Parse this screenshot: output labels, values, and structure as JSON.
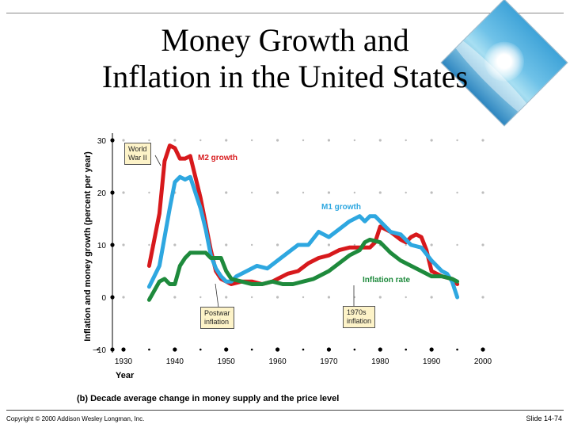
{
  "slide": {
    "title_line1": "Money Growth and",
    "title_line2": "Inflation in the United States",
    "copyright": "Copyright © 2000 Addison Wesley Longman, Inc.",
    "slide_number": "Slide 14-74",
    "caption": "(b) Decade average change in money supply and the price level"
  },
  "chart_data": {
    "type": "line",
    "ylabel": "Inflation and money growth (percent per year)",
    "xlabel": "Year",
    "xlim": [
      1926,
      2002
    ],
    "ylim": [
      -10,
      30
    ],
    "xticks": [
      1930,
      1940,
      1950,
      1960,
      1970,
      1980,
      1990,
      2000
    ],
    "yticks": [
      -10,
      0,
      10,
      20,
      30
    ],
    "grid": false,
    "series": [
      {
        "name": "M2 growth",
        "color": "#d7191c",
        "x": [
          1935,
          1937,
          1938,
          1939,
          1940,
          1941,
          1942,
          1943,
          1944,
          1945,
          1946,
          1947,
          1948,
          1949,
          1950,
          1951,
          1953,
          1955,
          1957,
          1959,
          1960,
          1962,
          1964,
          1966,
          1968,
          1970,
          1972,
          1974,
          1976,
          1977,
          1978,
          1979,
          1980,
          1982,
          1984,
          1985,
          1986,
          1987,
          1988,
          1989,
          1990,
          1991,
          1992,
          1994,
          1995
        ],
        "y": [
          6,
          16,
          26,
          29,
          28.5,
          26.5,
          26.5,
          27,
          23,
          19,
          14,
          9,
          5,
          3.5,
          3,
          2.5,
          3,
          3,
          2.5,
          3,
          3.5,
          4.5,
          5,
          6.5,
          7.5,
          8,
          9,
          9.5,
          9.5,
          9.5,
          9.5,
          10.5,
          13.5,
          12.5,
          11,
          10.5,
          11.5,
          12,
          11.5,
          9,
          5,
          4.5,
          4,
          3.5,
          2.5
        ]
      },
      {
        "name": "M1 growth",
        "color": "#2ea7e0",
        "x": [
          1935,
          1937,
          1939,
          1940,
          1941,
          1942,
          1943,
          1944,
          1945,
          1946,
          1947,
          1948,
          1949,
          1950,
          1951,
          1952,
          1954,
          1956,
          1958,
          1960,
          1962,
          1964,
          1966,
          1968,
          1969,
          1970,
          1972,
          1974,
          1976,
          1977,
          1978,
          1979,
          1980,
          1982,
          1984,
          1986,
          1988,
          1990,
          1992,
          1993,
          1994,
          1995
        ],
        "y": [
          2,
          6,
          17,
          22,
          23,
          22.5,
          23,
          20,
          17,
          13,
          8,
          5.5,
          4,
          3,
          3,
          4,
          5,
          6,
          5.5,
          7,
          8.5,
          10,
          10,
          12.5,
          12,
          11.5,
          13,
          14.5,
          15.5,
          14.5,
          15.5,
          15.5,
          14.5,
          12.5,
          12,
          10,
          9.5,
          7,
          5,
          4.5,
          3,
          0
        ]
      },
      {
        "name": "Inflation rate",
        "color": "#1e8a3c",
        "x": [
          1935,
          1937,
          1938,
          1939,
          1940,
          1941,
          1942,
          1943,
          1944,
          1945,
          1946,
          1947,
          1948,
          1949,
          1950,
          1951,
          1953,
          1955,
          1957,
          1959,
          1961,
          1963,
          1965,
          1967,
          1968,
          1970,
          1972,
          1974,
          1976,
          1977,
          1978,
          1980,
          1982,
          1984,
          1986,
          1988,
          1990,
          1992,
          1994,
          1995
        ],
        "y": [
          -0.5,
          3,
          3.5,
          2.5,
          2.5,
          6,
          7.5,
          8.5,
          8.5,
          8.5,
          8.5,
          7.5,
          7.5,
          7.5,
          5,
          3.5,
          3,
          2.5,
          2.5,
          3,
          2.5,
          2.5,
          3,
          3.5,
          4,
          5,
          6.5,
          8,
          9,
          10.5,
          11,
          10.5,
          8.5,
          7,
          6,
          5,
          4,
          4,
          3.5,
          3
        ]
      }
    ],
    "annotations": [
      {
        "text_line1": "World",
        "text_line2": "War II"
      },
      {
        "text_line1": "Postwar",
        "text_line2": "inflation"
      },
      {
        "text_line1": "1970s",
        "text_line2": "inflation"
      }
    ]
  }
}
